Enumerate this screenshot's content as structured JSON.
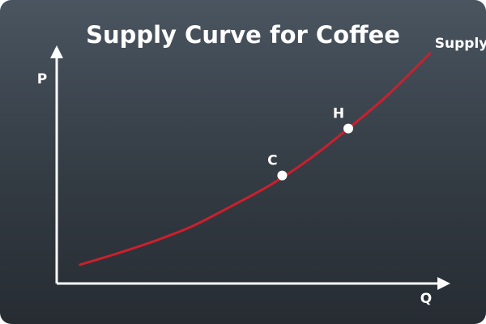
{
  "chart_data": {
    "type": "line",
    "title": "Supply Curve for Coffee",
    "xlabel": "Q",
    "ylabel": "P",
    "xlim": [
      0,
      10
    ],
    "ylim": [
      0,
      10
    ],
    "grid": false,
    "legend": "none",
    "series": [
      {
        "name": "Supply",
        "color": "#cc1f2d",
        "x": [
          0.6,
          1.5,
          2.5,
          3.5,
          4.5,
          5.5,
          6.5,
          7.5,
          8.5,
          9.6
        ],
        "y": [
          0.8,
          1.25,
          1.8,
          2.45,
          3.3,
          4.2,
          5.3,
          6.6,
          8.0,
          9.8
        ]
      }
    ],
    "points": [
      {
        "label": "C",
        "x": 5.8,
        "y": 4.6
      },
      {
        "label": "H",
        "x": 7.5,
        "y": 6.6
      }
    ]
  },
  "colors": {
    "axis": "#ffffff",
    "curve": "#cc1f2d",
    "point": "#ffffff"
  }
}
